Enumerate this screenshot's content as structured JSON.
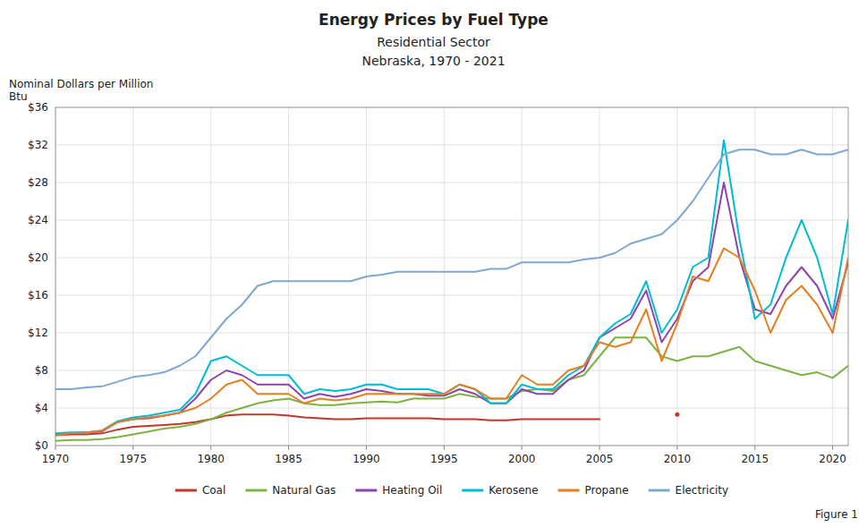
{
  "chart_data": {
    "type": "line",
    "title": "Energy Prices by Fuel Type",
    "subtitle": [
      "Residential Sector",
      "Nebraska, 1970 - 2021"
    ],
    "y_label": [
      "Nominal Dollars per Million",
      "Btu"
    ],
    "annotations": [
      "Figure 1"
    ],
    "x": [
      1970,
      1971,
      1972,
      1973,
      1974,
      1975,
      1976,
      1977,
      1978,
      1979,
      1980,
      1981,
      1982,
      1983,
      1984,
      1985,
      1986,
      1987,
      1988,
      1989,
      1990,
      1991,
      1992,
      1993,
      1994,
      1995,
      1996,
      1997,
      1998,
      1999,
      2000,
      2001,
      2002,
      2003,
      2004,
      2005,
      2006,
      2007,
      2008,
      2009,
      2010,
      2011,
      2012,
      2013,
      2014,
      2015,
      2016,
      2017,
      2018,
      2019,
      2020,
      2021
    ],
    "series": [
      {
        "name": "Coal",
        "color": "#c0392b",
        "values": [
          1.1,
          1.2,
          1.2,
          1.3,
          1.7,
          2.0,
          2.1,
          2.2,
          2.3,
          2.5,
          2.8,
          3.2,
          3.3,
          3.3,
          3.3,
          3.2,
          3.0,
          2.9,
          2.8,
          2.8,
          2.9,
          2.9,
          2.9,
          2.9,
          2.9,
          2.8,
          2.8,
          2.8,
          2.7,
          2.7,
          2.8,
          2.8,
          2.8,
          2.8,
          2.8,
          2.8,
          null,
          null,
          null,
          null,
          3.3,
          null,
          null,
          null,
          null,
          null,
          null,
          null,
          null,
          null,
          null,
          null
        ]
      },
      {
        "name": "Natural Gas",
        "color": "#7cb342",
        "values": [
          0.5,
          0.6,
          0.6,
          0.7,
          0.9,
          1.2,
          1.5,
          1.8,
          2.0,
          2.3,
          2.8,
          3.5,
          4.0,
          4.5,
          4.8,
          5.0,
          4.5,
          4.3,
          4.3,
          4.5,
          4.6,
          4.7,
          4.6,
          5.0,
          5.0,
          5.0,
          5.5,
          5.2,
          5.0,
          5.0,
          5.8,
          6.0,
          5.8,
          7.0,
          7.5,
          9.5,
          11.5,
          11.5,
          11.5,
          9.5,
          9.0,
          9.5,
          9.5,
          10.0,
          10.5,
          9.0,
          8.5,
          8.0,
          7.5,
          7.8,
          7.2,
          8.5
        ]
      },
      {
        "name": "Heating Oil",
        "color": "#8e44ad",
        "values": [
          1.2,
          1.3,
          1.4,
          1.5,
          2.5,
          2.8,
          2.9,
          3.2,
          3.5,
          5.0,
          7.0,
          8.0,
          7.5,
          6.5,
          6.5,
          6.5,
          5.0,
          5.5,
          5.2,
          5.5,
          6.0,
          5.8,
          5.5,
          5.5,
          5.3,
          5.3,
          6.0,
          5.5,
          4.5,
          4.5,
          6.0,
          5.5,
          5.5,
          7.0,
          8.0,
          11.5,
          12.5,
          13.5,
          16.5,
          11.0,
          13.5,
          17.5,
          19.0,
          28.0,
          20.0,
          14.5,
          14.0,
          17.0,
          19.0,
          17.0,
          13.5,
          19.5
        ]
      },
      {
        "name": "Kerosene",
        "color": "#00bcd4",
        "values": [
          1.3,
          1.4,
          1.4,
          1.6,
          2.6,
          3.0,
          3.2,
          3.5,
          3.8,
          5.5,
          9.0,
          9.5,
          8.5,
          7.5,
          7.5,
          7.5,
          5.5,
          6.0,
          5.8,
          6.0,
          6.5,
          6.5,
          6.0,
          6.0,
          6.0,
          5.5,
          6.5,
          6.0,
          4.5,
          4.5,
          6.5,
          6.0,
          6.0,
          7.5,
          8.5,
          11.5,
          13.0,
          14.0,
          17.5,
          12.0,
          14.5,
          19.0,
          20.0,
          32.5,
          22.0,
          13.5,
          15.0,
          20.0,
          24.0,
          20.0,
          14.0,
          24.0
        ]
      },
      {
        "name": "Propane",
        "color": "#e67e22",
        "values": [
          1.1,
          1.3,
          1.4,
          1.6,
          2.5,
          2.8,
          3.0,
          3.2,
          3.5,
          4.0,
          5.0,
          6.5,
          7.0,
          5.5,
          5.5,
          5.5,
          4.5,
          5.0,
          4.8,
          5.0,
          5.5,
          5.5,
          5.5,
          5.5,
          5.5,
          5.5,
          6.5,
          6.0,
          5.0,
          5.0,
          7.5,
          6.5,
          6.5,
          8.0,
          8.5,
          11.0,
          10.5,
          11.0,
          14.5,
          9.0,
          13.0,
          18.0,
          17.5,
          21.0,
          20.0,
          16.5,
          12.0,
          15.5,
          17.0,
          15.0,
          12.0,
          20.0
        ]
      },
      {
        "name": "Electricity",
        "color": "#7fa8d0",
        "values": [
          6.0,
          6.0,
          6.2,
          6.3,
          6.8,
          7.3,
          7.5,
          7.8,
          8.5,
          9.5,
          11.5,
          13.5,
          15.0,
          17.0,
          17.5,
          17.5,
          17.5,
          17.5,
          17.5,
          17.5,
          18.0,
          18.2,
          18.5,
          18.5,
          18.5,
          18.5,
          18.5,
          18.5,
          18.8,
          18.8,
          19.5,
          19.5,
          19.5,
          19.5,
          19.8,
          20.0,
          20.5,
          21.5,
          22.0,
          22.5,
          24.0,
          26.0,
          28.5,
          31.0,
          31.5,
          31.5,
          31.0,
          31.0,
          31.5,
          31.0,
          31.0,
          31.5
        ]
      }
    ],
    "xlim": [
      1970,
      2021
    ],
    "xticks": [
      1970,
      1975,
      1980,
      1985,
      1990,
      1995,
      2000,
      2005,
      2010,
      2015,
      2020
    ],
    "ylim": [
      0,
      36
    ],
    "yticks": [
      {
        "value": 0,
        "label": "$0"
      },
      {
        "value": 4,
        "label": "$4"
      },
      {
        "value": 8,
        "label": "$8"
      },
      {
        "value": 12,
        "label": "$12"
      },
      {
        "value": 16,
        "label": "$16"
      },
      {
        "value": 20,
        "label": "$20"
      },
      {
        "value": 24,
        "label": "$24"
      },
      {
        "value": 28,
        "label": "$28"
      },
      {
        "value": 32,
        "label": "$32"
      },
      {
        "value": 36,
        "label": "$36"
      }
    ],
    "grid": true,
    "legend": "bottom"
  }
}
